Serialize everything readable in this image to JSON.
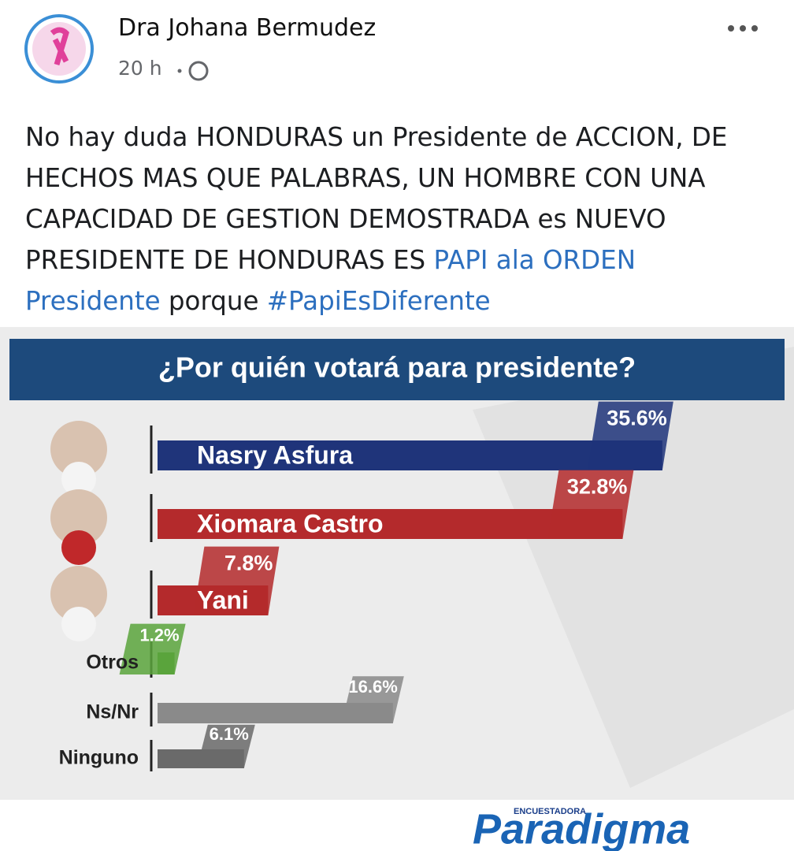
{
  "post": {
    "author": "Dra Johana Bermudez",
    "time": "20 h",
    "body": [
      {
        "text": "No hay duda HONDURAS un Presidente de ACCION, DE HECHOS MAS QUE PALABRAS, UN HOMBRE CON UNA CAPACIDAD DE GESTION DEMOSTRADA es NUEVO PRESIDENTE DE HONDURAS ES ",
        "link": false
      },
      {
        "text": "PAPI ala ORDEN Presidente",
        "link": true
      },
      {
        "text": " porque ",
        "link": false
      },
      {
        "text": "#PapiEsDiferente",
        "link": true
      }
    ]
  },
  "chart_data": {
    "type": "bar",
    "orientation": "horizontal",
    "title": "¿Por quién votará para presidente?",
    "categories": [
      "Nasry Asfura",
      "Xiomara Castro",
      "Yani",
      "Otros",
      "Ns/Nr",
      "Ninguno"
    ],
    "values": [
      35.6,
      32.8,
      7.8,
      1.2,
      16.6,
      6.1
    ],
    "value_labels": [
      "35.6%",
      "32.8%",
      "7.8%",
      "1.2%",
      "16.6%",
      "6.1%"
    ],
    "colors": [
      "#1f347a",
      "#b42a2c",
      "#b42a2c",
      "#5aa43c",
      "#8a8a8a",
      "#6a6a6a"
    ],
    "label_position": [
      "inside",
      "inside",
      "inside",
      "left",
      "left",
      "left"
    ],
    "brand": {
      "subtitle": "ENCUESTADORA",
      "name": "Paradigma"
    }
  }
}
